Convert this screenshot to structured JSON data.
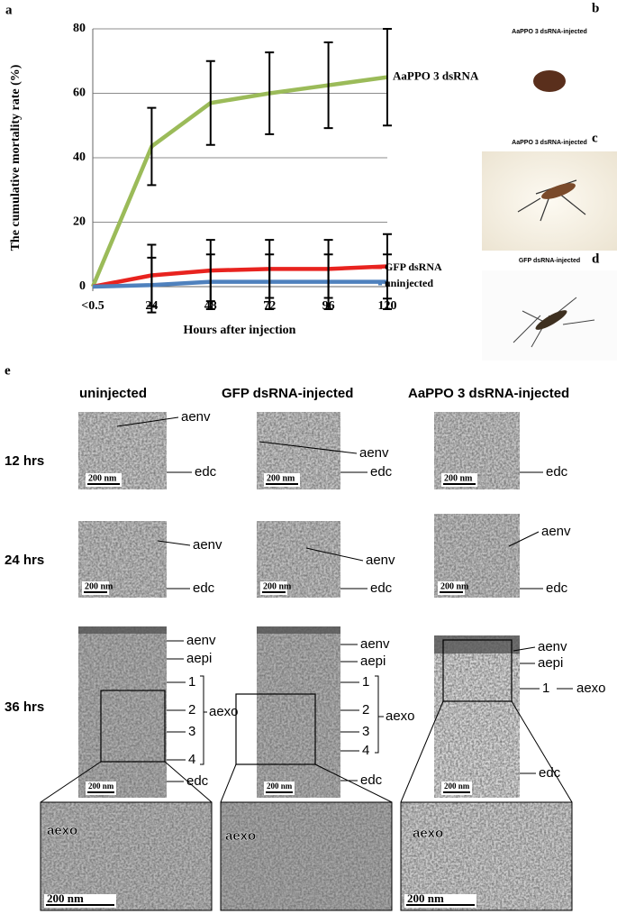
{
  "chart_data": {
    "type": "line",
    "panel": "a",
    "ylabel": "The cumulative mortality rate (%)",
    "xlabel": "Hours after injection",
    "categories": [
      "<0.5",
      "24",
      "48",
      "72",
      "96",
      "120"
    ],
    "ylim": [
      0,
      80
    ],
    "yticks": [
      0,
      20,
      40,
      60,
      80
    ],
    "grid": true,
    "series": [
      {
        "name": "AaPPO 3 dsRNA",
        "color": "#9bbb59",
        "values": [
          0,
          43.5,
          57,
          60,
          62.5,
          65
        ],
        "errors": [
          0,
          12,
          13,
          12.7,
          13.3,
          15
        ]
      },
      {
        "name": "GFP dsRNA",
        "color": "#e8231f",
        "values": [
          0,
          3.5,
          5,
          5.5,
          5.5,
          6.3
        ],
        "errors": [
          0,
          9.5,
          9.5,
          9,
          9,
          10
        ]
      },
      {
        "name": "uninjected",
        "color": "#4f81bd",
        "values": [
          0,
          0.5,
          1.5,
          1.5,
          1.5,
          1.5
        ],
        "errors": [
          0,
          8.5,
          8.5,
          8.5,
          8.5,
          8.5
        ]
      }
    ]
  },
  "panels": [
    {
      "letter": "b",
      "caption": "AaPPO 3 dsRNA-injected"
    },
    {
      "letter": "c",
      "caption": "AaPPO 3 dsRNA-injected"
    },
    {
      "letter": "d",
      "caption": "GFP dsRNA-injected"
    }
  ],
  "panel_e": {
    "letter": "e",
    "columns": [
      "uninjected",
      "GFP dsRNA-injected",
      "AaPPO 3 dsRNA-injected"
    ],
    "rows": [
      "12 hrs",
      "24 hrs",
      "36 hrs"
    ],
    "terms": [
      "aenv",
      "aepi",
      "edc",
      "aexo"
    ],
    "layers": [
      "1",
      "2",
      "3",
      "4"
    ],
    "scale_bar": "200 nm"
  }
}
